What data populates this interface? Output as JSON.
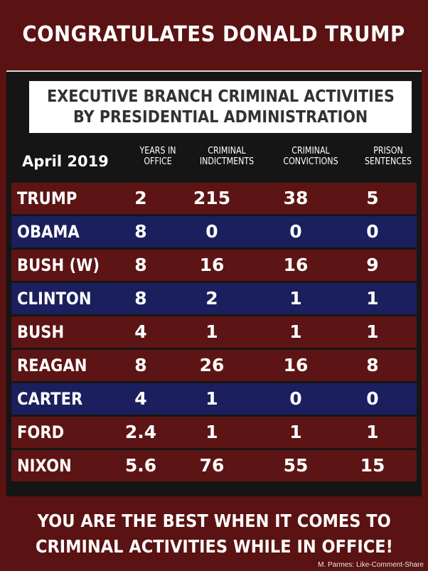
{
  "header_title": "CONGRATULATES DONALD TRUMP",
  "table_title": [
    "EXECUTIVE BRANCH CRIMINAL ACTIVITIES",
    "BY PRESIDENTIAL ADMINISTRATION"
  ],
  "date_label": "April 2019",
  "columns": [
    "YEARS IN\nOFFICE",
    "CRIMINAL\nINDICTMENTS",
    "CRIMINAL\nCONVICTIONS",
    "PRISON\nSENTENCES"
  ],
  "rows": [
    {
      "name": "TRUMP",
      "color": "red",
      "years": "2",
      "indictments": "215",
      "convictions": "38",
      "sentences": "5"
    },
    {
      "name": "OBAMA",
      "color": "blue",
      "years": "8",
      "indictments": "0",
      "convictions": "0",
      "sentences": "0"
    },
    {
      "name": "BUSH (W)",
      "color": "red",
      "years": "8",
      "indictments": "16",
      "convictions": "16",
      "sentences": "9"
    },
    {
      "name": "CLINTON",
      "color": "blue",
      "years": "8",
      "indictments": "2",
      "convictions": "1",
      "sentences": "1"
    },
    {
      "name": "BUSH",
      "color": "red",
      "years": "4",
      "indictments": "1",
      "convictions": "1",
      "sentences": "1"
    },
    {
      "name": "REAGAN",
      "color": "red",
      "years": "8",
      "indictments": "26",
      "convictions": "16",
      "sentences": "8"
    },
    {
      "name": "CARTER",
      "color": "blue",
      "years": "4",
      "indictments": "1",
      "convictions": "0",
      "sentences": "0"
    },
    {
      "name": "FORD",
      "color": "red",
      "years": "2.4",
      "indictments": "1",
      "convictions": "1",
      "sentences": "1"
    },
    {
      "name": "NIXON",
      "color": "red",
      "years": "5.6",
      "indictments": "76",
      "convictions": "55",
      "sentences": "15"
    }
  ],
  "footer_lines": [
    "YOU ARE THE BEST WHEN IT COMES TO",
    "CRIMINAL ACTIVITIES WHILE IN OFFICE!"
  ],
  "credit": "M. Parmes: Like-Comment-Share",
  "colors": {
    "red_row": "#5d1414",
    "blue_row": "#1b1f5e",
    "banner": "#5a1212"
  }
}
